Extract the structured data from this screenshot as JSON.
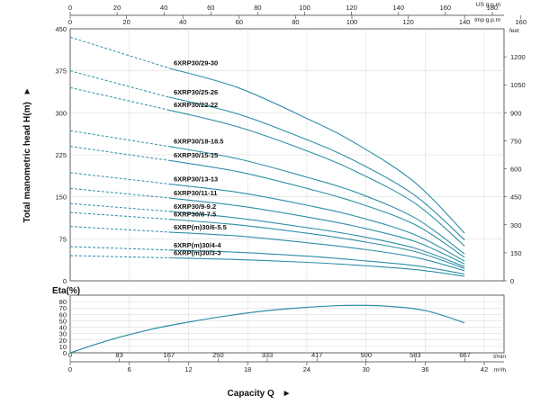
{
  "chart_data": [
    {
      "type": "line",
      "title": "",
      "ylabel": "Total manometric head H(m)",
      "ylabel_arrow": "►",
      "xlabel": "",
      "x_unit": "m³/h",
      "ylim": [
        0,
        450
      ],
      "xlim": [
        0,
        44
      ],
      "y_ticks": [
        0,
        75,
        150,
        225,
        300,
        375,
        450
      ],
      "x_ticks": [
        0,
        6,
        12,
        18,
        24,
        30,
        36,
        42
      ],
      "right_axis": {
        "unit": "feet",
        "ticks": [
          0,
          150,
          300,
          450,
          600,
          750,
          900,
          1050,
          1200
        ]
      },
      "top_axis_us": {
        "unit": "US g.p.m",
        "ticks": [
          0,
          20,
          40,
          60,
          80,
          100,
          120,
          140,
          160,
          180
        ]
      },
      "top_axis_imp": {
        "unit": "Imp g.p.m",
        "ticks": [
          0,
          20,
          40,
          60,
          80,
          100,
          120,
          140,
          160
        ]
      },
      "grid": true,
      "line_color": "#2e8fa6",
      "series": [
        {
          "name": "6XRP30/29-30",
          "start_head": 435,
          "points": [
            [
              10,
              380
            ],
            [
              17,
              345
            ],
            [
              24,
              290
            ],
            [
              29,
              245
            ],
            [
              35,
              175
            ],
            [
              40,
              85
            ]
          ]
        },
        {
          "name": "6XRP30/25-26",
          "start_head": 375,
          "points": [
            [
              10,
              328
            ],
            [
              17,
              298
            ],
            [
              24,
              252
            ],
            [
              29,
              213
            ],
            [
              35,
              152
            ],
            [
              40,
              73
            ]
          ]
        },
        {
          "name": "6XRP30/22-22",
          "start_head": 345,
          "points": [
            [
              10,
              305
            ],
            [
              17,
              275
            ],
            [
              24,
              232
            ],
            [
              29,
              195
            ],
            [
              35,
              138
            ],
            [
              40,
              62
            ]
          ]
        },
        {
          "name": "6XRP30/18-18.5",
          "start_head": 268,
          "points": [
            [
              10,
              240
            ],
            [
              17,
              218
            ],
            [
              24,
              185
            ],
            [
              29,
              158
            ],
            [
              35,
              112
            ],
            [
              40,
              48
            ]
          ]
        },
        {
          "name": "6XRP30/15-15",
          "start_head": 240,
          "points": [
            [
              10,
              215
            ],
            [
              17,
              195
            ],
            [
              24,
              165
            ],
            [
              29,
              140
            ],
            [
              35,
              100
            ],
            [
              40,
              42
            ]
          ]
        },
        {
          "name": "6XRP30/13-13",
          "start_head": 193,
          "points": [
            [
              10,
              173
            ],
            [
              17,
              158
            ],
            [
              24,
              135
            ],
            [
              29,
              115
            ],
            [
              35,
              82
            ],
            [
              40,
              35
            ]
          ]
        },
        {
          "name": "6XRP30/11-11",
          "start_head": 165,
          "points": [
            [
              10,
              148
            ],
            [
              17,
              134
            ],
            [
              24,
              114
            ],
            [
              29,
              97
            ],
            [
              35,
              70
            ],
            [
              40,
              30
            ]
          ]
        },
        {
          "name": "6XRP30/9-9.2",
          "start_head": 138,
          "points": [
            [
              10,
              124
            ],
            [
              17,
              112
            ],
            [
              24,
              95
            ],
            [
              29,
              81
            ],
            [
              35,
              58
            ],
            [
              40,
              25
            ]
          ]
        },
        {
          "name": "6XRP30/8-7.5",
          "start_head": 122,
          "points": [
            [
              10,
              110
            ],
            [
              17,
              100
            ],
            [
              24,
              85
            ],
            [
              29,
              72
            ],
            [
              35,
              52
            ],
            [
              40,
              22
            ]
          ]
        },
        {
          "name": "6XRP(m)30/6-5.5",
          "start_head": 97,
          "points": [
            [
              10,
              87
            ],
            [
              17,
              80
            ],
            [
              24,
              68
            ],
            [
              29,
              58
            ],
            [
              35,
              42
            ],
            [
              40,
              18
            ]
          ]
        },
        {
          "name": "6XRP(m)30/4-4",
          "start_head": 61,
          "points": [
            [
              10,
              55
            ],
            [
              17,
              51
            ],
            [
              24,
              44
            ],
            [
              29,
              37
            ],
            [
              35,
              27
            ],
            [
              40,
              12
            ]
          ]
        },
        {
          "name": "6XRP(m)30/3-3",
          "start_head": 45,
          "points": [
            [
              10,
              41
            ],
            [
              17,
              38
            ],
            [
              24,
              33
            ],
            [
              29,
              28
            ],
            [
              35,
              20
            ],
            [
              40,
              8
            ]
          ]
        }
      ]
    },
    {
      "type": "line",
      "title": "",
      "ylabel": "Eta(%)",
      "xlabel": "Capacity Q",
      "xlabel_arrow": "►",
      "ylim": [
        0,
        90
      ],
      "xlim": [
        0,
        44
      ],
      "y_ticks": [
        0,
        10,
        20,
        30,
        40,
        50,
        60,
        70,
        80
      ],
      "x_ticks": [
        0,
        6,
        12,
        18,
        24,
        30,
        36,
        42
      ],
      "x_unit": "m³/h",
      "secondary_x_axis": {
        "unit": "l/min",
        "ticks": [
          0,
          83,
          167,
          250,
          333,
          417,
          500,
          583,
          667
        ]
      },
      "grid": true,
      "line_color": "#2e8fa6",
      "series": [
        {
          "points": [
            [
              0,
              0
            ],
            [
              4,
              20
            ],
            [
              8,
              36
            ],
            [
              12,
              48
            ],
            [
              16,
              58
            ],
            [
              20,
              66
            ],
            [
              24,
              71
            ],
            [
              28,
              74
            ],
            [
              32,
              73
            ],
            [
              36,
              66
            ],
            [
              40,
              47
            ]
          ]
        }
      ]
    }
  ]
}
